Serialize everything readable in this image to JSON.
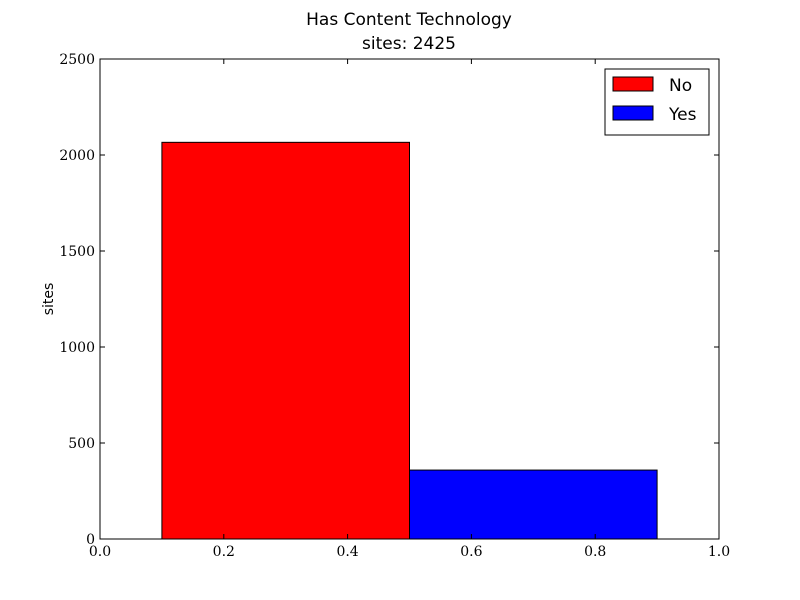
{
  "chart_data": {
    "type": "bar",
    "title": "Has Content Technology",
    "subtitle": "sites: 2425",
    "xlabel": "",
    "ylabel": "sites",
    "xlim": [
      0.0,
      1.0
    ],
    "ylim": [
      0,
      2500
    ],
    "x_ticks": [
      "0.0",
      "0.2",
      "0.4",
      "0.6",
      "0.8",
      "1.0"
    ],
    "y_ticks": [
      "0",
      "500",
      "1000",
      "1500",
      "2000",
      "2500"
    ],
    "bars": [
      {
        "name": "No",
        "x_start": 0.1,
        "x_end": 0.5,
        "value": 2066,
        "color": "#ff0000"
      },
      {
        "name": "Yes",
        "x_start": 0.5,
        "x_end": 0.9,
        "value": 359,
        "color": "#0000ff"
      }
    ],
    "legend": {
      "placement": "top-right",
      "entries": [
        {
          "label": "No",
          "color": "#ff0000"
        },
        {
          "label": "Yes",
          "color": "#0000ff"
        }
      ]
    },
    "grid": false
  }
}
